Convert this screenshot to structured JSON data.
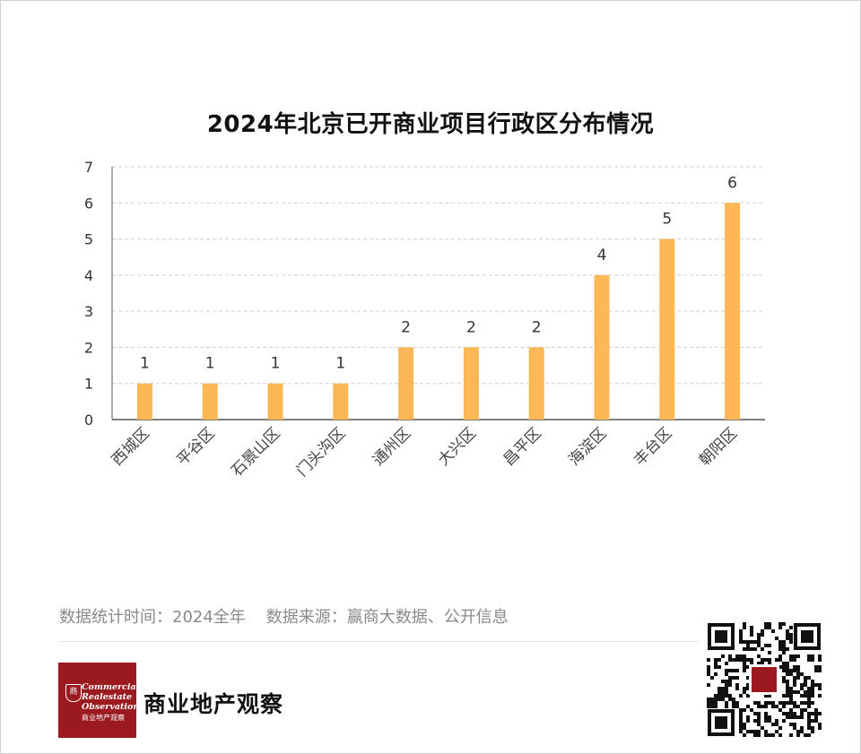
{
  "chart_data": {
    "type": "bar",
    "title": "2024年北京已开商业项目行政区分布情况",
    "categories": [
      "西城区",
      "平谷区",
      "石景山区",
      "门头沟区",
      "通州区",
      "大兴区",
      "昌平区",
      "海淀区",
      "丰台区",
      "朝阳区"
    ],
    "values": [
      1,
      1,
      1,
      1,
      2,
      2,
      2,
      4,
      5,
      6
    ],
    "ylim": [
      0,
      7
    ],
    "yticks": [
      0,
      1,
      2,
      3,
      4,
      5,
      6,
      7
    ],
    "xlabel": "",
    "ylabel": "",
    "grid": "horizontal-dashed",
    "data_labels": true,
    "bar_color": "#FDB755"
  },
  "footer": {
    "note": "数据统计时间：2024全年    数据来源：赢商大数据、公开信息"
  },
  "logo": {
    "emblem": "商",
    "line1": "Commercial",
    "line2": "Realestate",
    "line3": "Observation",
    "sub": "商业地产观察"
  },
  "brand": {
    "name": "商业地产观察"
  },
  "icons": {
    "qr": "qr-code-icon"
  }
}
